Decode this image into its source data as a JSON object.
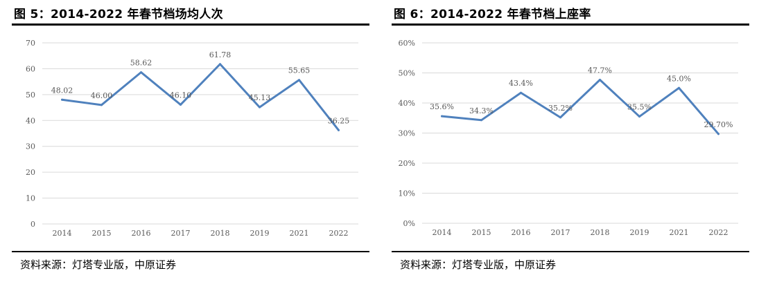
{
  "figures": [
    {
      "title": "图 5：2014-2022 年春节档场均人次",
      "source": "资料来源：灯塔专业版，中原证券"
    },
    {
      "title": "图 6：2014-2022 年春节档上座率",
      "source": "资料来源：灯塔专业版，中原证券"
    }
  ],
  "chart_data": [
    {
      "type": "line",
      "title": "",
      "xlabel": "",
      "ylabel": "",
      "categories": [
        "2014",
        "2015",
        "2016",
        "2017",
        "2018",
        "2019",
        "2021",
        "2022"
      ],
      "series": [
        {
          "values": [
            48.02,
            46.0,
            58.62,
            46.1,
            61.78,
            45.13,
            55.65,
            36.25
          ]
        }
      ],
      "data_labels": [
        "48.02",
        "46.00",
        "58.62",
        "46.10",
        "61.78",
        "45.13",
        "55.65",
        "36.25"
      ],
      "ylim": [
        0,
        70
      ],
      "yticks": [
        0,
        10,
        20,
        30,
        40,
        50,
        60,
        70
      ],
      "ytick_labels": [
        "0",
        "10",
        "20",
        "30",
        "40",
        "50",
        "60",
        "70"
      ],
      "grid": true,
      "legend": "none",
      "line_color": "#4F81BD",
      "grid_color": "#D9D9D9"
    },
    {
      "type": "line",
      "title": "",
      "xlabel": "",
      "ylabel": "",
      "categories": [
        "2014",
        "2015",
        "2016",
        "2017",
        "2018",
        "2019",
        "2021",
        "2022"
      ],
      "series": [
        {
          "values": [
            35.6,
            34.3,
            43.4,
            35.2,
            47.7,
            35.5,
            45.0,
            29.7
          ]
        }
      ],
      "data_labels": [
        "35.6%",
        "34.3%",
        "43.4%",
        "35.2%",
        "47.7%",
        "35.5%",
        "45.0%",
        "29.70%"
      ],
      "ylim": [
        0,
        60
      ],
      "yticks": [
        0,
        10,
        20,
        30,
        40,
        50,
        60
      ],
      "ytick_labels": [
        "0%",
        "10%",
        "20%",
        "30%",
        "40%",
        "50%",
        "60%"
      ],
      "grid": true,
      "legend": "none",
      "line_color": "#4F81BD",
      "grid_color": "#D9D9D9"
    }
  ]
}
